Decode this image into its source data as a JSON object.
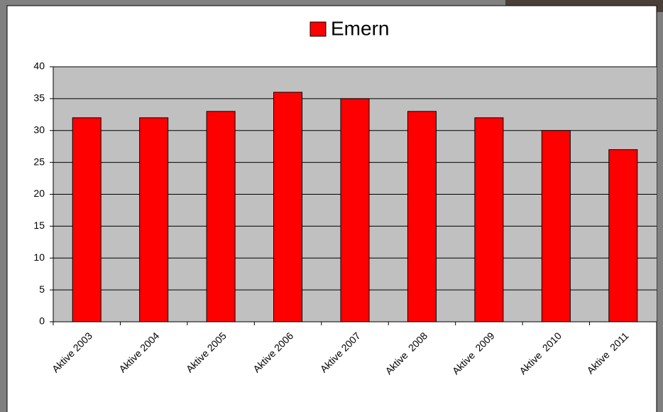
{
  "chart_data": {
    "type": "bar",
    "categories": [
      "Aktive 2003",
      "Aktive 2004",
      "Aktive 2005",
      "Aktive 2006",
      "Aktive 2007",
      "Aktive  2008",
      "Aktive  2009",
      "Aktive  2010",
      "Aktive  2011"
    ],
    "series": [
      {
        "name": "Emern",
        "color": "#ff0000",
        "values": [
          32,
          32,
          33,
          36,
          35,
          33,
          32,
          30,
          27
        ]
      }
    ],
    "ylim": [
      0,
      40
    ],
    "yticks": [
      0,
      5,
      10,
      15,
      20,
      25,
      30,
      35,
      40
    ],
    "grid": true,
    "legend": "top"
  }
}
